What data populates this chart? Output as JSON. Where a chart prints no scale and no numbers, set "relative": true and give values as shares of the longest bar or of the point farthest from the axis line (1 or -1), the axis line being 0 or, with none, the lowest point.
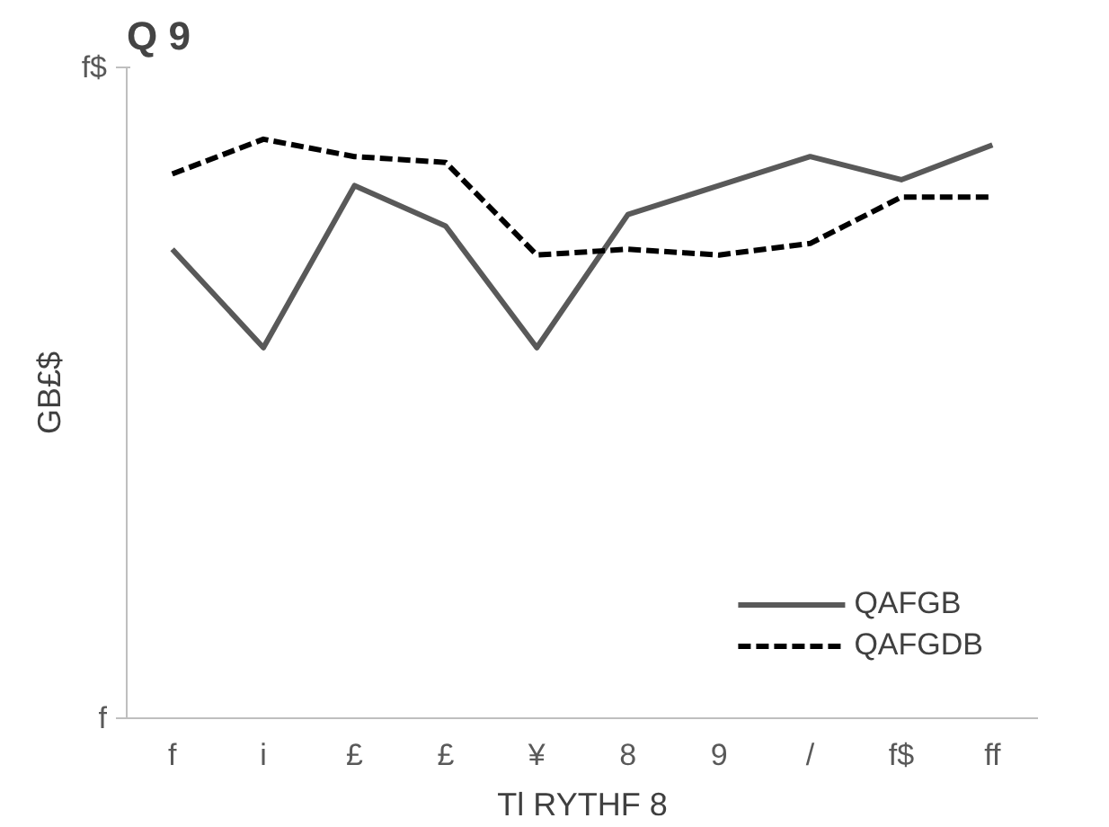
{
  "chart_data": {
    "type": "line",
    "title": "Q 9",
    "xlabel": "Tl RYTHF 8",
    "ylabel": "GB£$",
    "categories": [
      "f",
      "i",
      "£",
      "£",
      "¥",
      "8",
      "9",
      "/",
      "f$",
      "ff"
    ],
    "relative": true,
    "annotations": [
      "f$",
      "f"
    ],
    "legend": "bottom right",
    "series": [
      {
        "name": "QAFGB",
        "color": "#595959",
        "line_style": "solid",
        "values": [
          0.81,
          0.64,
          0.92,
          0.85,
          0.64,
          0.87,
          0.92,
          0.97,
          0.93,
          0.99
        ]
      },
      {
        "name": "QAFGDB",
        "color": "#000000",
        "line_style": "dashed",
        "values": [
          0.94,
          1,
          0.97,
          0.96,
          0.8,
          0.81,
          0.8,
          0.82,
          0.9,
          0.9
        ]
      }
    ]
  }
}
